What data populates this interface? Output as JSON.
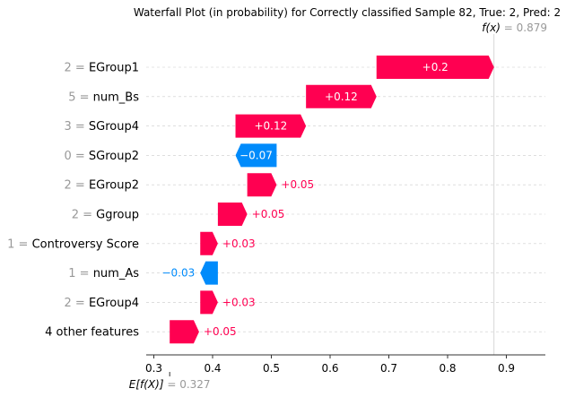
{
  "chart_data": {
    "type": "waterfall",
    "title": "Waterfall Plot (in probability) for Correctly classified Sample 82, True: 2, Pred: 2",
    "xlim": [
      0.28,
      0.97
    ],
    "xticks": [
      "0.3",
      "0.4",
      "0.5",
      "0.6",
      "0.7",
      "0.8",
      "0.9"
    ],
    "xtick_values": [
      0.3,
      0.4,
      0.5,
      0.6,
      0.7,
      0.8,
      0.9
    ],
    "base_value": 0.327,
    "output_value": 0.879,
    "fx_label": "f(x)",
    "fx_value_text": " = 0.879",
    "ex_label": "E[f(X)]",
    "ex_value_text": " = 0.327",
    "grid": "horizontal dashed",
    "colors": {
      "positive": "#ff0051",
      "negative": "#008bfb",
      "axis": "#333333"
    },
    "features": [
      {
        "value_text": "2 = ",
        "name": "EGroup1",
        "contribution": 0.2,
        "label": "+0.2",
        "start": 0.679,
        "label_inside": true
      },
      {
        "value_text": "5 = ",
        "name": "num_Bs",
        "contribution": 0.12,
        "label": "+0.12",
        "start": 0.559,
        "label_inside": true
      },
      {
        "value_text": "3 = ",
        "name": "SGroup4",
        "contribution": 0.12,
        "label": "+0.12",
        "start": 0.439,
        "label_inside": true
      },
      {
        "value_text": "0 = ",
        "name": "SGroup2",
        "contribution": -0.07,
        "label": "−0.07",
        "start": 0.509,
        "label_inside": true
      },
      {
        "value_text": "2 = ",
        "name": "EGroup2",
        "contribution": 0.05,
        "label": "+0.05",
        "start": 0.459,
        "label_inside": false
      },
      {
        "value_text": "2 = ",
        "name": "Ggroup",
        "contribution": 0.05,
        "label": "+0.05",
        "start": 0.409,
        "label_inside": false
      },
      {
        "value_text": "1 = ",
        "name": "Controversy Score",
        "contribution": 0.03,
        "label": "+0.03",
        "start": 0.379,
        "label_inside": false
      },
      {
        "value_text": "1 = ",
        "name": "num_As",
        "contribution": -0.03,
        "label": "−0.03",
        "start": 0.409,
        "label_inside": false
      },
      {
        "value_text": "2 = ",
        "name": "EGroup4",
        "contribution": 0.03,
        "label": "+0.03",
        "start": 0.379,
        "label_inside": false
      },
      {
        "value_text": "",
        "name": "4 other features",
        "contribution": 0.05,
        "label": "+0.05",
        "start": 0.327,
        "label_inside": false
      }
    ]
  }
}
